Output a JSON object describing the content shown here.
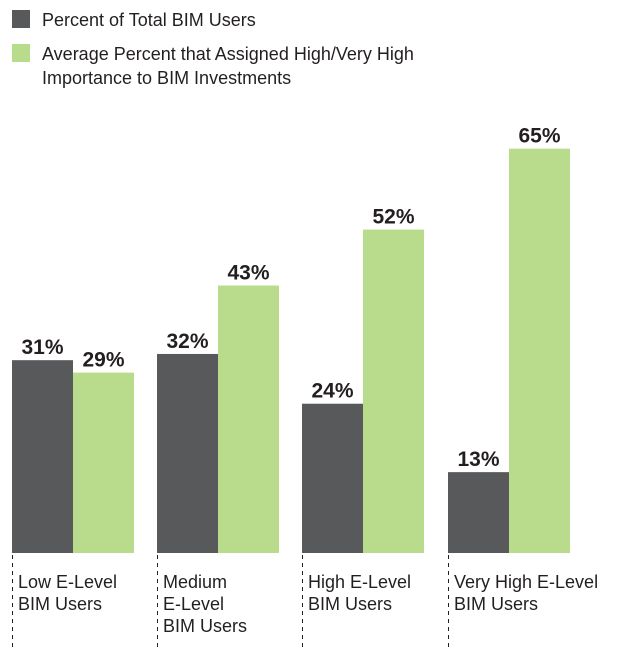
{
  "chart_data": {
    "type": "bar",
    "categories": [
      [
        "Low E-Level",
        "BIM Users"
      ],
      [
        "Medium",
        "E-Level",
        "BIM Users"
      ],
      [
        "High E-Level",
        "BIM Users"
      ],
      [
        "Very High E-Level",
        "BIM Users"
      ]
    ],
    "series": [
      {
        "name": "Percent of Total BIM Users",
        "color": "#58595b",
        "values": [
          31,
          32,
          24,
          13
        ],
        "value_labels": [
          "31%",
          "32%",
          "24%",
          "13%"
        ]
      },
      {
        "name_lines": [
          "Average Percent that Assigned High/Very High",
          "Importance to BIM Investments"
        ],
        "color": "#b8dc8c",
        "values": [
          29,
          43,
          52,
          65
        ],
        "value_labels": [
          "29%",
          "43%",
          "52%",
          "65%"
        ]
      }
    ],
    "ylim": [
      0,
      70
    ],
    "grid": false,
    "legend_position": "top-left",
    "separator_style": "dashed"
  }
}
